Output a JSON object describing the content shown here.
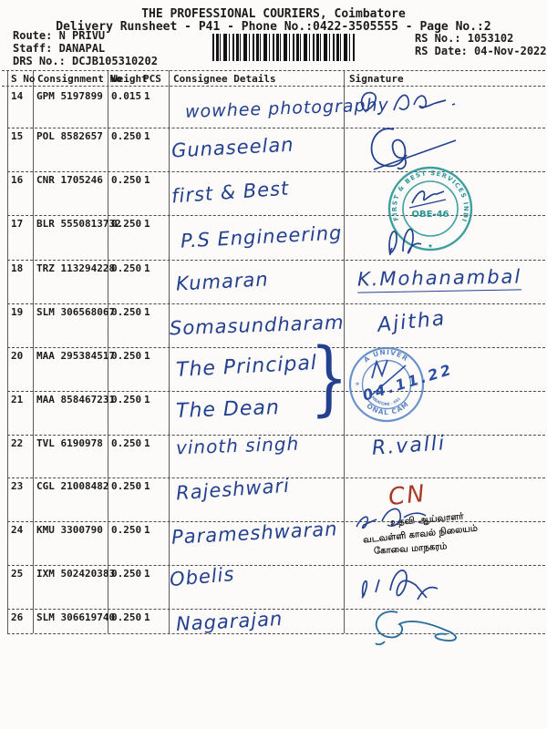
{
  "document": {
    "title": "THE PROFESSIONAL COURIERS, Coimbatore",
    "subtitle": "Delivery Runsheet - P41 - Phone No.:0422-3505555 - Page No.:2",
    "route": "Route: N PRIVU",
    "staff": "Staff: DANAPAL",
    "drs_no": "DRS No.: DCJB105310202",
    "rs_no": "RS No.: 1053102",
    "rs_date": "RS Date: 04-Nov-2022"
  },
  "table": {
    "headers": {
      "sno": "S No",
      "consignment": "Consignment No",
      "weight": "Weight",
      "pcs": "PCS",
      "consignee": "Consignee Details",
      "signature": "Signature"
    },
    "rows": [
      {
        "sno": "14",
        "consignment": "GPM 5197899",
        "weight": "0.015",
        "pcs": "1",
        "consignee": "wowhee photography",
        "signature": {
          "type": "scribble"
        }
      },
      {
        "sno": "15",
        "consignment": "POL 8582657",
        "weight": "0.250",
        "pcs": "1",
        "consignee": "Gunaseelan",
        "signature": {
          "type": "scribble"
        }
      },
      {
        "sno": "16",
        "consignment": "CNR 1705246",
        "weight": "0.250",
        "pcs": "1",
        "consignee": "first & Best",
        "signature": {
          "type": "stamp"
        }
      },
      {
        "sno": "17",
        "consignment": "BLR 5550813732",
        "weight": "0.250",
        "pcs": "1",
        "consignee": "P.S Engineering",
        "signature": {
          "type": "scribble"
        }
      },
      {
        "sno": "18",
        "consignment": "TRZ 113294228",
        "weight": "0.250",
        "pcs": "1",
        "consignee": "Kumaran",
        "signature": {
          "type": "name",
          "text": "K.Mohanambal"
        }
      },
      {
        "sno": "19",
        "consignment": "SLM 306568067",
        "weight": "0.250",
        "pcs": "1",
        "consignee": "Somasundharam",
        "signature": {
          "type": "name",
          "text": "Ajitha"
        }
      },
      {
        "sno": "20",
        "consignment": "MAA 295384517",
        "weight": "0.250",
        "pcs": "1",
        "consignee": "The Principal",
        "signature": {
          "type": "stamp"
        }
      },
      {
        "sno": "21",
        "consignment": "MAA 858467231",
        "weight": "0.250",
        "pcs": "1",
        "consignee": "The Dean",
        "signature": {
          "type": "none"
        }
      },
      {
        "sno": "22",
        "consignment": "TVL 6190978",
        "weight": "0.250",
        "pcs": "1",
        "consignee": "vinoth singh",
        "signature": {
          "type": "name",
          "text": "R.valli"
        }
      },
      {
        "sno": "23",
        "consignment": "CGL 21008482",
        "weight": "0.250",
        "pcs": "1",
        "consignee": "Rajeshwari",
        "signature": {
          "type": "name",
          "text": "CN",
          "color": "#a83a26"
        }
      },
      {
        "sno": "24",
        "consignment": "KMU 3300790",
        "weight": "0.250",
        "pcs": "1",
        "consignee": "Parameshwaran",
        "signature": {
          "type": "scribble"
        }
      },
      {
        "sno": "25",
        "consignment": "IXM 502420383",
        "weight": "0.250",
        "pcs": "1",
        "consignee": "Obelis",
        "signature": {
          "type": "scribble"
        }
      },
      {
        "sno": "26",
        "consignment": "SLM 306619740",
        "weight": "0.250",
        "pcs": "1",
        "consignee": "Nagarajan",
        "signature": {
          "type": "scribble"
        }
      }
    ]
  },
  "stamps": {
    "first_best": {
      "ring_text": "FIRST & BEST SERVICES INDIA PVT LTD",
      "center_code": "OBE-46",
      "star": "★",
      "color": "#2a9595"
    },
    "anna_university": {
      "arc_top": "ANNA UNIVERSITY",
      "arc_bottom": "REGIONAL CAMPUS",
      "inner_text": "COIMBATORE - 641 046",
      "handwritten_date": "04.11.22",
      "monogram": "M",
      "color": "#5b85c4"
    },
    "tamil_police": {
      "lines": [
        "உதவி ஆய்வாளர்",
        "வடவள்ளி காவல் நிலையம்",
        "கோவை மாநகரம்"
      ],
      "color": "#4b4ba8"
    }
  },
  "annotations": {
    "brace": "}"
  },
  "colors": {
    "ink": "#23418f",
    "print": "#1b1b1b",
    "red_ink": "#a83a26",
    "teal": "#2a9595",
    "anna_blue": "#5b85c4",
    "tamil_purple": "#4b4ba8"
  }
}
